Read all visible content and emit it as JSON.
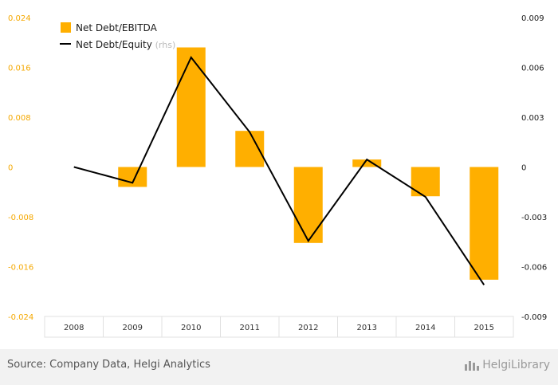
{
  "chart_data": {
    "type": "bar+line",
    "categories": [
      "2008",
      "2009",
      "2010",
      "2011",
      "2012",
      "2013",
      "2014",
      "2015"
    ],
    "series": [
      {
        "name": "Net Debt/EBITDA",
        "kind": "bar",
        "axis": "left",
        "color": "#ffaf00",
        "values": [
          0,
          -0.0032,
          0.0192,
          0.0058,
          -0.0122,
          0.0012,
          -0.0047,
          -0.0181
        ]
      },
      {
        "name": "Net Debt/Equity",
        "kind": "line",
        "axis": "right",
        "color": "#000000",
        "values": [
          0,
          -0.00095,
          0.0066,
          0.0021,
          -0.00445,
          0.00045,
          -0.0018,
          -0.0071
        ]
      }
    ],
    "legend": [
      {
        "label": "Net Debt/EBITDA",
        "suffix": ""
      },
      {
        "label": "Net Debt/Equity",
        "suffix": "(rhs)"
      }
    ],
    "left_axis": {
      "ylim": [
        -0.024,
        0.024
      ],
      "ticks": [
        0.024,
        0.016,
        0.008,
        0,
        -0.008,
        -0.016,
        -0.024
      ],
      "tick_labels": [
        "0.024",
        "0.016",
        "0.008",
        "0",
        "-0.008",
        "-0.016",
        "-0.024"
      ],
      "color": "#f5a800"
    },
    "right_axis": {
      "ylim": [
        -0.009,
        0.009
      ],
      "ticks": [
        0.009,
        0.006,
        0.003,
        0,
        -0.003,
        -0.006,
        -0.009
      ],
      "tick_labels": [
        "0.009",
        "0.006",
        "0.003",
        "0",
        "-0.003",
        "-0.006",
        "-0.009"
      ],
      "color": "#1a1a1a"
    },
    "legend_position": "top-left",
    "grid": false
  },
  "footer": {
    "source": "Source: Company Data, Helgi Analytics",
    "brand": "HelgiLibrary"
  }
}
